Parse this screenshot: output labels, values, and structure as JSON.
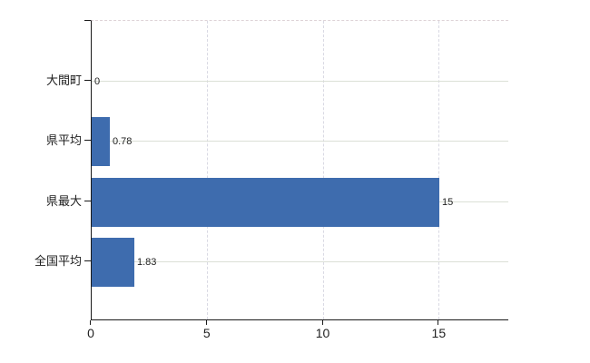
{
  "chart": {
    "background_color": "#ffffff",
    "bar_color": "#3e6cae",
    "axis_color": "#1a1a1a",
    "text_color": "#1f1f1f",
    "horizontal_grid_color": "#dbe0d6",
    "vertical_grid_color": "#d9d9e3",
    "top_border_color": "#ddd2d6"
  },
  "chart_data": {
    "type": "bar",
    "orientation": "horizontal",
    "title": "",
    "categories": [
      "大間町",
      "県平均",
      "県最大",
      "全国平均"
    ],
    "values": [
      0,
      0.78,
      15,
      1.83
    ],
    "value_labels": [
      "0",
      "0.78",
      "15",
      "1.83"
    ],
    "x_tick_labels": [
      "0",
      "5",
      "10",
      "15"
    ],
    "x_tick_values": [
      0,
      5,
      10,
      15
    ],
    "xlim": [
      0,
      18
    ],
    "grid": true,
    "legend": false
  }
}
